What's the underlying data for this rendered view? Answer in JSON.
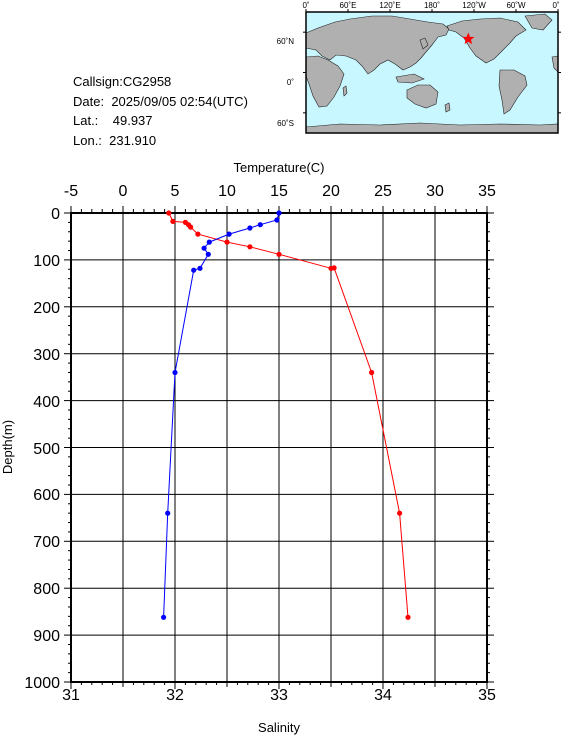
{
  "station": {
    "callsign": "Callsign:CG2958",
    "date_label": "Date:",
    "date_value": "2025/09/05 02:54(UTC)",
    "lat_label": "Lat.:",
    "lat_value": "49.937",
    "lon_label": "Lon.:",
    "lon_value": "231.910"
  },
  "map": {
    "lon_ticks": [
      "0˚",
      "60˚E",
      "120˚E",
      "180˚",
      "120˚W",
      "60˚W",
      "0˚"
    ],
    "lat_ticks": [
      "60˚N",
      "0˚",
      "60˚S"
    ],
    "marker": {
      "lon": 231.91,
      "lat": 49.937
    },
    "ocean_color": "#c9f7ff",
    "land_color": "#b0b0b0",
    "marker_color": "#ff0000"
  },
  "chart_data": {
    "type": "line",
    "temperature_axis": {
      "label": "Temperature(C)",
      "range": [
        -5,
        35
      ],
      "ticks": [
        "-5",
        "0",
        "5",
        "10",
        "15",
        "20",
        "25",
        "30",
        "35"
      ]
    },
    "salinity_axis": {
      "label": "Salinity",
      "range": [
        31,
        35
      ],
      "ticks": [
        "31",
        "32",
        "33",
        "34",
        "35"
      ]
    },
    "depth_axis": {
      "label": "Depth(m)",
      "range": [
        0,
        1000
      ],
      "ticks": [
        "0",
        "100",
        "200",
        "300",
        "400",
        "500",
        "600",
        "700",
        "800",
        "900",
        "1000"
      ]
    },
    "grid": true,
    "series": [
      {
        "quantity": "temperature",
        "color": "#ff0000",
        "points": [
          [
            4.4,
            0
          ],
          [
            4.8,
            18
          ],
          [
            6.0,
            20
          ],
          [
            6.3,
            25
          ],
          [
            6.5,
            30
          ],
          [
            7.2,
            45
          ],
          [
            10.0,
            62
          ],
          [
            12.2,
            72
          ],
          [
            15.0,
            88
          ],
          [
            20.0,
            118
          ],
          [
            20.3,
            117
          ],
          [
            23.9,
            340
          ],
          [
            26.6,
            640
          ],
          [
            27.4,
            862
          ]
        ]
      },
      {
        "quantity": "salinity",
        "color": "#0000ff",
        "points": [
          [
            33.0,
            0
          ],
          [
            32.98,
            15
          ],
          [
            32.82,
            25
          ],
          [
            32.72,
            32
          ],
          [
            32.52,
            45
          ],
          [
            32.33,
            62
          ],
          [
            32.28,
            75
          ],
          [
            32.32,
            88
          ],
          [
            32.24,
            118
          ],
          [
            32.18,
            122
          ],
          [
            32.0,
            340
          ],
          [
            31.93,
            640
          ],
          [
            31.89,
            862
          ]
        ]
      }
    ]
  }
}
